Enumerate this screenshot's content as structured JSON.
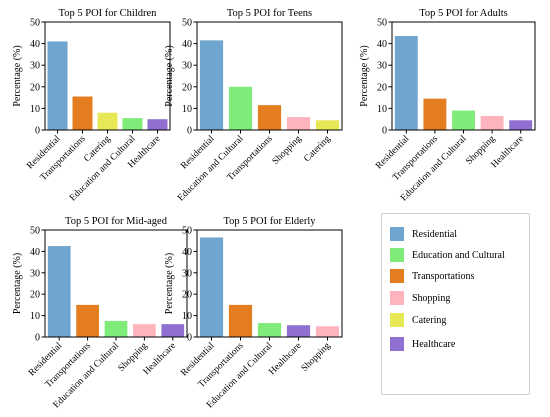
{
  "colors": {
    "Residential": "#6fa5cf",
    "Education and Cultural": "#7fec7a",
    "Transportations": "#e37d20",
    "Shopping": "#ffb3bd",
    "Catering": "#e7e856",
    "Healthcare": "#8f6fd0"
  },
  "legend": {
    "items": [
      {
        "label": "Residential",
        "color": "#6fa5cf"
      },
      {
        "label": "Education and Cultural",
        "color": "#7fec7a"
      },
      {
        "label": "Transportations",
        "color": "#e37d20"
      },
      {
        "label": "Shopping",
        "color": "#ffb3bd"
      },
      {
        "label": "Catering",
        "color": "#e7e856"
      },
      {
        "label": "Healthcare",
        "color": "#8f6fd0"
      }
    ]
  },
  "chart_data": [
    {
      "type": "bar",
      "title": "Top 5 POI for Children",
      "ylabel": "Percentage (%)",
      "xlabel": "",
      "ylim": [
        0,
        50
      ],
      "yticks": [
        0,
        10,
        20,
        30,
        40,
        50
      ],
      "categories": [
        "Residential",
        "Transportations",
        "Catering",
        "Education and Cultural",
        "Healthcare"
      ],
      "values": [
        41,
        15.5,
        8,
        5.5,
        5
      ]
    },
    {
      "type": "bar",
      "title": "Top 5 POI for Teens",
      "ylabel": "Percentage (%)",
      "xlabel": "",
      "ylim": [
        0,
        50
      ],
      "yticks": [
        0,
        10,
        20,
        30,
        40,
        50
      ],
      "categories": [
        "Residential",
        "Education and Cultural",
        "Transportations",
        "Shopping",
        "Catering"
      ],
      "values": [
        41.5,
        20,
        11.5,
        6,
        4.5
      ]
    },
    {
      "type": "bar",
      "title": "Top 5 POI for Adults",
      "ylabel": "Percentage (%)",
      "xlabel": "",
      "ylim": [
        0,
        50
      ],
      "yticks": [
        0,
        10,
        20,
        30,
        40,
        50
      ],
      "categories": [
        "Residential",
        "Transportations",
        "Education and Cultural",
        "Shopping",
        "Healthcare"
      ],
      "values": [
        43.5,
        14.5,
        9,
        6.5,
        4.5
      ]
    },
    {
      "type": "bar",
      "title": "Top 5 POI for Mid-aged",
      "ylabel": "Percentage (%)",
      "xlabel": "",
      "ylim": [
        0,
        50
      ],
      "yticks": [
        0,
        10,
        20,
        30,
        40,
        50
      ],
      "categories": [
        "Residential",
        "Transportations",
        "Education and Cultural",
        "Shopping",
        "Healthcare"
      ],
      "values": [
        42.5,
        15,
        7.5,
        6,
        6
      ]
    },
    {
      "type": "bar",
      "title": "Top 5 POI for Elderly",
      "ylabel": "Percentage (%)",
      "xlabel": "",
      "ylim": [
        0,
        50
      ],
      "yticks": [
        0,
        10,
        20,
        30,
        40,
        50
      ],
      "categories": [
        "Residential",
        "Transportations",
        "Education and Cultural",
        "Healthcare",
        "Shopping"
      ],
      "values": [
        46.5,
        15,
        6.5,
        5.5,
        5
      ]
    }
  ]
}
